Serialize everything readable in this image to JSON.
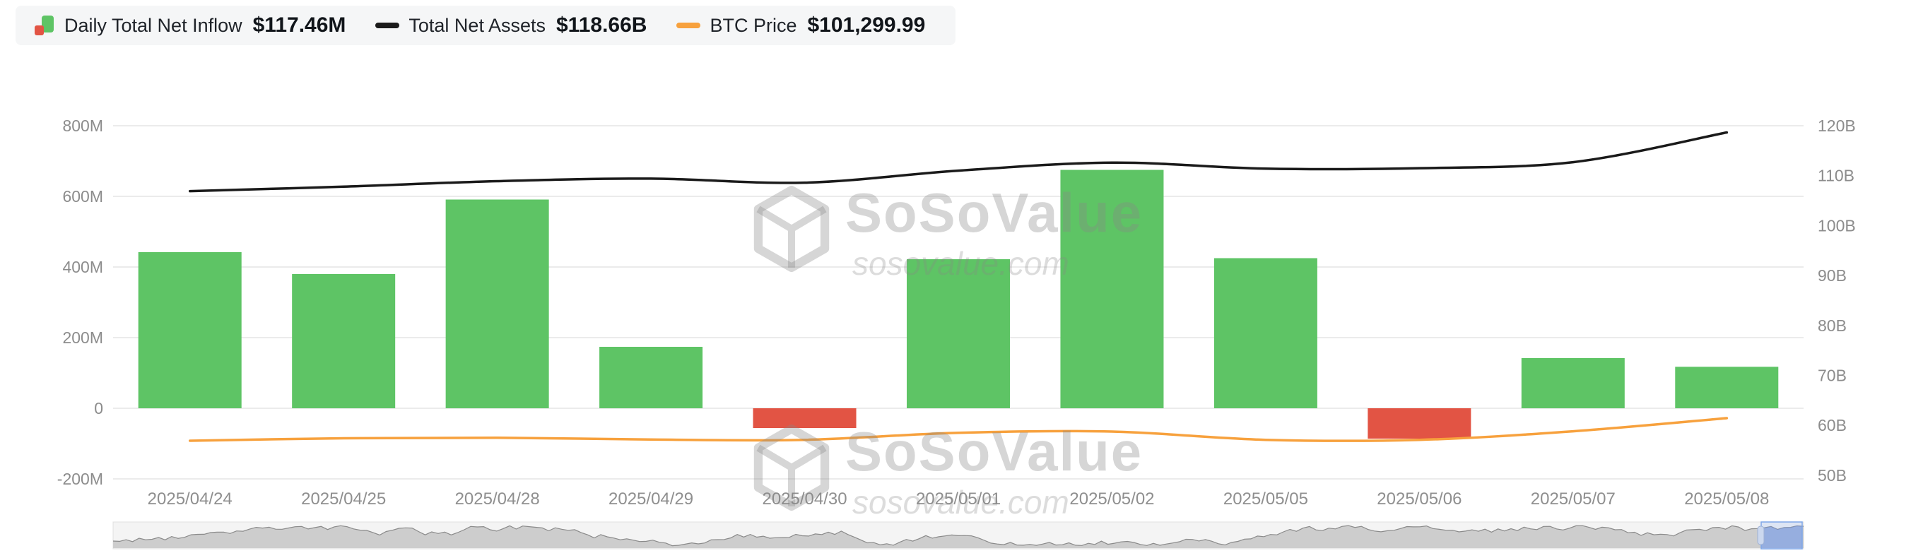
{
  "legend": {
    "items": [
      {
        "label": "Daily Total Net Inflow",
        "value": "$117.46M",
        "icon": "candle-icon",
        "colors": {
          "up": "#5EC465",
          "down": "#E25444"
        }
      },
      {
        "label": "Total Net Assets",
        "value": "$118.66B",
        "icon": "black-dash-icon",
        "color": "#1a1a1a"
      },
      {
        "label": "BTC Price",
        "value": "$101,299.99",
        "icon": "orange-dash-icon",
        "color": "#F7A13D"
      }
    ]
  },
  "watermark": {
    "brand": "SoSoValue",
    "domain": "sosovalue.com"
  },
  "chart_data": {
    "type": "bar",
    "categories": [
      "2025/04/24",
      "2025/04/25",
      "2025/04/28",
      "2025/04/29",
      "2025/04/30",
      "2025/05/01",
      "2025/05/02",
      "2025/05/05",
      "2025/05/06",
      "2025/05/07",
      "2025/05/08"
    ],
    "series": [
      {
        "name": "Daily Total Net Inflow",
        "type": "bar",
        "unit": "M USD",
        "axis": "left",
        "values": [
          442,
          380,
          591,
          174,
          -56,
          422,
          675,
          425,
          -86,
          142,
          117.46
        ],
        "color_positive": "#5EC465",
        "color_negative": "#E25444"
      },
      {
        "name": "Total Net Assets",
        "type": "line",
        "unit": "B USD",
        "axis": "right",
        "values": [
          106.9,
          107.8,
          108.9,
          109.4,
          108.6,
          111.0,
          112.6,
          111.4,
          111.5,
          112.7,
          118.66
        ],
        "color": "#1a1a1a"
      },
      {
        "name": "BTC Price",
        "type": "line",
        "unit": "USD",
        "axis": "hidden",
        "values": [
          93900,
          94700,
          94900,
          94300,
          94200,
          96500,
          96900,
          94200,
          94200,
          97000,
          101299.99
        ],
        "color": "#F7A13D"
      }
    ],
    "y_axis_left": {
      "unit": "M",
      "ticks": [
        "800M",
        "600M",
        "400M",
        "200M",
        "0",
        "-200M"
      ],
      "tick_values": [
        800,
        600,
        400,
        200,
        0,
        -200
      ],
      "range": [
        -200,
        800
      ]
    },
    "y_axis_right": {
      "unit": "B",
      "ticks": [
        "120B",
        "110B",
        "100B",
        "90B",
        "80B",
        "70B",
        "60B",
        "50B"
      ],
      "tick_values": [
        120,
        110,
        100,
        90,
        80,
        70,
        60,
        50
      ],
      "range": [
        50,
        120
      ]
    },
    "grid": true,
    "legend_position": "top-left"
  },
  "navigator": {
    "selection": "right-edge"
  }
}
